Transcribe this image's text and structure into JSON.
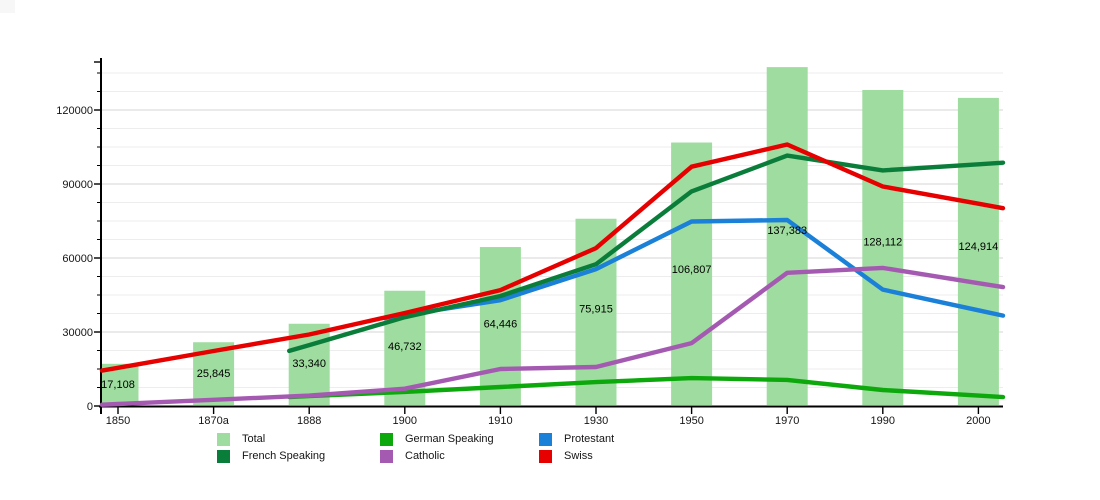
{
  "chart_data": {
    "type": "bar+line",
    "title": "",
    "xlabel": "",
    "ylabel": "",
    "grid": true,
    "legend_position": "bottom",
    "categories": [
      "1850",
      "1870a",
      "1888",
      "1900",
      "1910",
      "1930",
      "1950",
      "1970",
      "1990",
      "2000"
    ],
    "y_axis": {
      "ticks": [
        0,
        30000,
        60000,
        90000,
        120000
      ],
      "labels": [
        "0",
        "30000",
        "60000",
        "90000",
        "120000"
      ],
      "minor_step": 7500,
      "ylim": [
        0,
        139500
      ]
    },
    "bars": {
      "name": "Total",
      "color": "#9fdc9f",
      "values": [
        17108,
        25845,
        33340,
        46732,
        64446,
        75915,
        106807,
        137383,
        128112,
        124914
      ],
      "labels": [
        "17,108",
        "25,845",
        "33,340",
        "46,732",
        "64,446",
        "75,915",
        "106,807",
        "137,383",
        "128,112",
        "124,914"
      ]
    },
    "series": [
      {
        "name": "German Speaking",
        "color": "#0ca80c",
        "values": [
          null,
          null,
          4000,
          5700,
          7700,
          9700,
          11300,
          10600,
          6500,
          4200
        ]
      },
      {
        "name": "Protestant",
        "color": "#1b80d8",
        "values": [
          null,
          null,
          null,
          36900,
          42900,
          55500,
          74800,
          75400,
          47200,
          38800
        ]
      },
      {
        "name": "French Speaking",
        "color": "#0b7d3b",
        "values": [
          null,
          null,
          24700,
          36000,
          44600,
          57500,
          87000,
          101500,
          95500,
          98000
        ]
      },
      {
        "name": "Catholic",
        "color": "#a55ab2",
        "values": [
          800,
          2500,
          4200,
          7000,
          15000,
          15800,
          25500,
          54000,
          56000,
          49800
        ]
      },
      {
        "name": "Swiss",
        "color": "#e60000",
        "values": [
          15500,
          22300,
          29000,
          37700,
          47000,
          64000,
          97000,
          106000,
          89000,
          82000
        ]
      }
    ],
    "legend": [
      {
        "label": "Total",
        "color": "#9fdc9f"
      },
      {
        "label": "German Speaking",
        "color": "#0ca80c"
      },
      {
        "label": "Protestant",
        "color": "#1b80d8"
      },
      {
        "label": "French Speaking",
        "color": "#0b7d3b"
      },
      {
        "label": "Catholic",
        "color": "#a55ab2"
      },
      {
        "label": "Swiss",
        "color": "#e60000"
      }
    ]
  }
}
